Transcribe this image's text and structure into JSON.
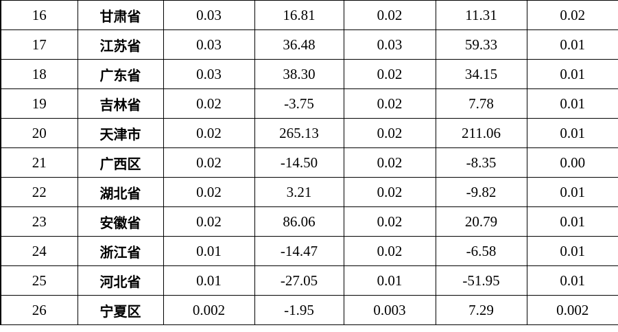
{
  "table": {
    "rows": [
      [
        "16",
        "甘肃省",
        "0.03",
        "16.81",
        "0.02",
        "11.31",
        "0.02"
      ],
      [
        "17",
        "江苏省",
        "0.03",
        "36.48",
        "0.03",
        "59.33",
        "0.01"
      ],
      [
        "18",
        "广东省",
        "0.03",
        "38.30",
        "0.02",
        "34.15",
        "0.01"
      ],
      [
        "19",
        "吉林省",
        "0.02",
        "-3.75",
        "0.02",
        "7.78",
        "0.01"
      ],
      [
        "20",
        "天津市",
        "0.02",
        "265.13",
        "0.02",
        "211.06",
        "0.01"
      ],
      [
        "21",
        "广西区",
        "0.02",
        "-14.50",
        "0.02",
        "-8.35",
        "0.00"
      ],
      [
        "22",
        "湖北省",
        "0.02",
        "3.21",
        "0.02",
        "-9.82",
        "0.01"
      ],
      [
        "23",
        "安徽省",
        "0.02",
        "86.06",
        "0.02",
        "20.79",
        "0.01"
      ],
      [
        "24",
        "浙江省",
        "0.01",
        "-14.47",
        "0.02",
        "-6.58",
        "0.01"
      ],
      [
        "25",
        "河北省",
        "0.01",
        "-27.05",
        "0.01",
        "-51.95",
        "0.01"
      ],
      [
        "26",
        "宁夏区",
        "0.002",
        "-1.95",
        "0.003",
        "7.29",
        "0.002"
      ]
    ]
  }
}
